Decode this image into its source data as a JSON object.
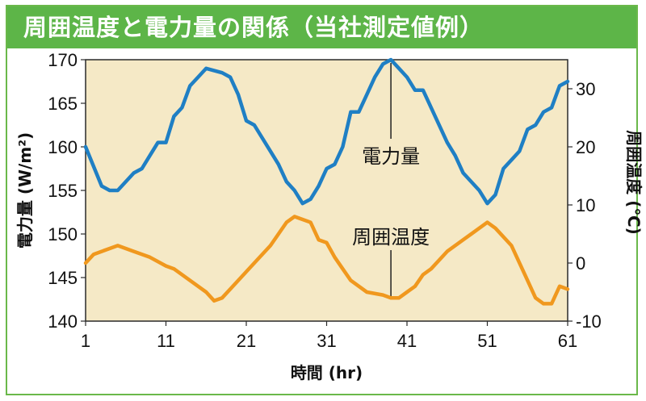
{
  "banner": {
    "title": "周囲温度と電力量の関係（当社測定値例）"
  },
  "colors": {
    "banner": "#5db548",
    "border": "#6ab84a",
    "plot_background": "#f5e9c6",
    "power_line": "#1f7fc4",
    "temperature_line": "#f0981e"
  },
  "chart_data": {
    "type": "line",
    "title": "周囲温度と電力量の関係（当社測定値例）",
    "xlabel": "時間 (hr)",
    "ylabel_left": "電力量 (W/m²)",
    "ylabel_right": "周囲温度 (℃)",
    "xlim": [
      1,
      61
    ],
    "ylim_left": [
      140,
      170
    ],
    "ylim_right": [
      -10,
      35
    ],
    "x_ticks": [
      1,
      11,
      21,
      31,
      41,
      51,
      61
    ],
    "y_left_ticks": [
      140,
      145,
      150,
      155,
      160,
      165,
      170
    ],
    "y_right_ticks": [
      -10,
      0,
      10,
      20,
      30
    ],
    "grid": false,
    "annotations": [
      {
        "text": "電力量",
        "x": 39,
        "series": "電力量"
      },
      {
        "text": "周囲温度",
        "x": 39,
        "series": "周囲温度"
      }
    ],
    "series": [
      {
        "name": "電力量",
        "axis": "left",
        "x": [
          1,
          3,
          4,
          5,
          7,
          8,
          9,
          10,
          11,
          12,
          13,
          14,
          15,
          16,
          18,
          19,
          20,
          21,
          22,
          24,
          25,
          26,
          27,
          28,
          29,
          30,
          31,
          32,
          33,
          34,
          35,
          36,
          37,
          38,
          39,
          40,
          41,
          42,
          43,
          44,
          46,
          47,
          48,
          50,
          51,
          52,
          53,
          54,
          55,
          56,
          57,
          58,
          59,
          60,
          61
        ],
        "values": [
          160,
          155.5,
          155,
          155,
          157,
          157.5,
          159,
          160.5,
          160.5,
          163.5,
          164.5,
          167,
          168,
          169,
          168.5,
          168,
          166,
          163,
          162.5,
          159.5,
          158,
          156,
          155,
          153.5,
          154,
          155.5,
          157.5,
          158,
          160,
          164,
          164,
          166,
          168,
          169.5,
          170,
          169,
          168,
          166.5,
          166.5,
          164.5,
          160.5,
          159,
          157,
          155,
          153.5,
          154.5,
          157.5,
          158.5,
          159.5,
          162,
          162.5,
          164,
          164.5,
          167,
          167.5
        ]
      },
      {
        "name": "周囲温度",
        "axis": "right",
        "x": [
          1,
          2,
          3,
          4,
          5,
          7,
          9,
          11,
          12,
          14,
          16,
          17,
          18,
          20,
          22,
          24,
          26,
          27,
          28,
          29,
          30,
          31,
          32,
          33,
          34,
          36,
          38,
          39,
          40,
          41,
          42,
          43,
          44,
          46,
          48,
          49,
          50,
          51,
          52,
          54,
          56,
          57,
          58,
          59,
          60,
          61
        ],
        "values": [
          0,
          1.5,
          2,
          2.5,
          3,
          2,
          1,
          -0.5,
          -1,
          -3,
          -5,
          -6.5,
          -6,
          -3,
          0,
          3,
          7,
          8,
          7.5,
          7,
          4,
          3.5,
          1,
          -1,
          -3,
          -5,
          -5.5,
          -6,
          -6,
          -5,
          -4,
          -2,
          -1,
          2,
          4,
          5,
          6,
          7,
          6,
          3,
          -3,
          -6,
          -7,
          -7,
          -4,
          -4.5
        ]
      }
    ]
  }
}
